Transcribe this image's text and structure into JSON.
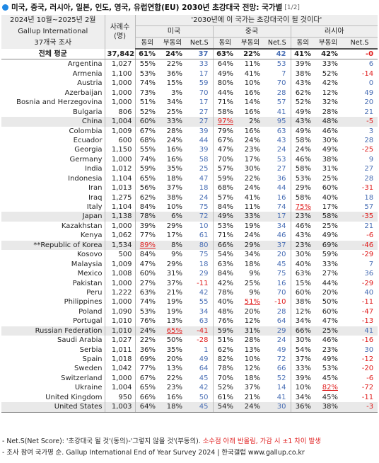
{
  "title": "미국, 중국, 러시아, 일본, 인도, 영국, 유럽연합(EU) 2030년 초강대국 전망: 국가별",
  "page": "[1/2]",
  "header": {
    "left_line1": "2024년 10월~2025년 2월",
    "left_line2": "Gallup International",
    "left_line3": "37개국 조사",
    "sample_line1": "사례수",
    "sample_line2": "(명)",
    "question": "'2030년에 이 국가는 초강대국이 될 것이다'",
    "countries": [
      "미국",
      "중국",
      "러시아"
    ],
    "sub_labels": [
      "동의",
      "부동의",
      "Net.S"
    ]
  },
  "rows": [
    {
      "name": "전체 평균",
      "n": "37,842",
      "v": [
        "61%",
        "24%",
        "37",
        "63%",
        "22%",
        "42",
        "41%",
        "42%",
        "-0"
      ],
      "neg": [
        false,
        false,
        true
      ],
      "total": true
    },
    {
      "name": "Argentina",
      "n": "1,027",
      "v": [
        "55%",
        "22%",
        "33",
        "64%",
        "11%",
        "53",
        "39%",
        "33%",
        "6"
      ],
      "neg": [
        false,
        false,
        false
      ]
    },
    {
      "name": "Armenia",
      "n": "1,100",
      "v": [
        "53%",
        "36%",
        "17",
        "49%",
        "41%",
        "7",
        "38%",
        "52%",
        "-14"
      ],
      "neg": [
        false,
        false,
        true
      ]
    },
    {
      "name": "Austria",
      "n": "1,000",
      "v": [
        "74%",
        "15%",
        "59",
        "80%",
        "10%",
        "70",
        "43%",
        "42%",
        "0"
      ],
      "neg": [
        false,
        false,
        false
      ]
    },
    {
      "name": "Azerbaijan",
      "n": "1,000",
      "v": [
        "73%",
        "3%",
        "70",
        "44%",
        "16%",
        "28",
        "62%",
        "12%",
        "49"
      ],
      "neg": [
        false,
        false,
        false
      ]
    },
    {
      "name": "Bosnia and Herzegovina",
      "n": "1,000",
      "v": [
        "51%",
        "34%",
        "17",
        "71%",
        "14%",
        "57",
        "52%",
        "32%",
        "20"
      ],
      "neg": [
        false,
        false,
        false
      ]
    },
    {
      "name": "Bulgaria",
      "n": "806",
      "v": [
        "52%",
        "25%",
        "27",
        "58%",
        "16%",
        "41",
        "49%",
        "28%",
        "21"
      ],
      "neg": [
        false,
        false,
        false
      ]
    },
    {
      "name": "China",
      "n": "1,004",
      "v": [
        "60%",
        "33%",
        "27",
        "97%",
        "2%",
        "95",
        "43%",
        "48%",
        "-5"
      ],
      "neg": [
        false,
        false,
        true
      ],
      "shade": true,
      "hl": [
        3
      ]
    },
    {
      "name": "Colombia",
      "n": "1,009",
      "v": [
        "67%",
        "28%",
        "39",
        "79%",
        "16%",
        "63",
        "49%",
        "46%",
        "3"
      ],
      "neg": [
        false,
        false,
        false
      ]
    },
    {
      "name": "Ecuador",
      "n": "600",
      "v": [
        "68%",
        "24%",
        "44",
        "67%",
        "24%",
        "43",
        "58%",
        "30%",
        "28"
      ],
      "neg": [
        false,
        false,
        false
      ]
    },
    {
      "name": "Georgia",
      "n": "1,150",
      "v": [
        "55%",
        "16%",
        "39",
        "47%",
        "23%",
        "24",
        "24%",
        "49%",
        "-25"
      ],
      "neg": [
        false,
        false,
        true
      ]
    },
    {
      "name": "Germany",
      "n": "1,000",
      "v": [
        "74%",
        "16%",
        "58",
        "70%",
        "17%",
        "53",
        "46%",
        "38%",
        "9"
      ],
      "neg": [
        false,
        false,
        false
      ]
    },
    {
      "name": "India",
      "n": "1,012",
      "v": [
        "59%",
        "35%",
        "25",
        "57%",
        "30%",
        "27",
        "58%",
        "31%",
        "27"
      ],
      "neg": [
        false,
        false,
        false
      ]
    },
    {
      "name": "Indonesia",
      "n": "1,104",
      "v": [
        "65%",
        "18%",
        "47",
        "59%",
        "22%",
        "36",
        "53%",
        "25%",
        "28"
      ],
      "neg": [
        false,
        false,
        false
      ]
    },
    {
      "name": "Iran",
      "n": "1,013",
      "v": [
        "56%",
        "37%",
        "18",
        "68%",
        "24%",
        "44",
        "29%",
        "60%",
        "-31"
      ],
      "neg": [
        false,
        false,
        true
      ]
    },
    {
      "name": "Iraq",
      "n": "1,275",
      "v": [
        "62%",
        "38%",
        "24",
        "57%",
        "41%",
        "16",
        "58%",
        "40%",
        "18"
      ],
      "neg": [
        false,
        false,
        false
      ]
    },
    {
      "name": "Italy",
      "n": "1,104",
      "v": [
        "84%",
        "10%",
        "75",
        "84%",
        "11%",
        "74",
        "75%",
        "17%",
        "57"
      ],
      "neg": [
        false,
        false,
        false
      ],
      "hl": [
        6
      ]
    },
    {
      "name": "Japan",
      "n": "1,138",
      "v": [
        "78%",
        "6%",
        "72",
        "49%",
        "33%",
        "17",
        "23%",
        "58%",
        "-35"
      ],
      "neg": [
        false,
        false,
        true
      ],
      "shade": true
    },
    {
      "name": "Kazakhstan",
      "n": "1,000",
      "v": [
        "39%",
        "29%",
        "10",
        "53%",
        "19%",
        "34",
        "46%",
        "25%",
        "21"
      ],
      "neg": [
        false,
        false,
        false
      ]
    },
    {
      "name": "Kenya",
      "n": "1,062",
      "v": [
        "77%",
        "17%",
        "61",
        "71%",
        "24%",
        "46",
        "43%",
        "49%",
        "-6"
      ],
      "neg": [
        false,
        false,
        true
      ]
    },
    {
      "name": "**Republic of Korea",
      "n": "1,534",
      "v": [
        "89%",
        "8%",
        "80",
        "66%",
        "29%",
        "37",
        "23%",
        "69%",
        "-46"
      ],
      "neg": [
        false,
        false,
        true
      ],
      "shade": true,
      "hl": [
        0
      ]
    },
    {
      "name": "Kosovo",
      "n": "500",
      "v": [
        "84%",
        "9%",
        "75",
        "54%",
        "34%",
        "20",
        "30%",
        "59%",
        "-29"
      ],
      "neg": [
        false,
        false,
        true
      ]
    },
    {
      "name": "Malaysia",
      "n": "1,009",
      "v": [
        "47%",
        "29%",
        "18",
        "63%",
        "18%",
        "45",
        "40%",
        "33%",
        "7"
      ],
      "neg": [
        false,
        false,
        false
      ]
    },
    {
      "name": "Mexico",
      "n": "1,008",
      "v": [
        "60%",
        "31%",
        "29",
        "84%",
        "9%",
        "75",
        "63%",
        "27%",
        "36"
      ],
      "neg": [
        false,
        false,
        false
      ]
    },
    {
      "name": "Pakistan",
      "n": "1,000",
      "v": [
        "27%",
        "37%",
        "-11",
        "42%",
        "25%",
        "16",
        "15%",
        "44%",
        "-29"
      ],
      "neg": [
        true,
        false,
        true
      ]
    },
    {
      "name": "Peru",
      "n": "1,222",
      "v": [
        "63%",
        "21%",
        "42",
        "78%",
        "9%",
        "70",
        "60%",
        "20%",
        "40"
      ],
      "neg": [
        false,
        false,
        false
      ]
    },
    {
      "name": "Philippines",
      "n": "1,000",
      "v": [
        "74%",
        "19%",
        "55",
        "40%",
        "51%",
        "-10",
        "38%",
        "50%",
        "-11"
      ],
      "neg": [
        false,
        true,
        true
      ],
      "hl": [
        4
      ]
    },
    {
      "name": "Poland",
      "n": "1,090",
      "v": [
        "53%",
        "19%",
        "34",
        "48%",
        "20%",
        "28",
        "12%",
        "60%",
        "-47"
      ],
      "neg": [
        false,
        false,
        true
      ]
    },
    {
      "name": "Portugal",
      "n": "1,010",
      "v": [
        "76%",
        "13%",
        "63",
        "76%",
        "12%",
        "64",
        "34%",
        "47%",
        "-13"
      ],
      "neg": [
        false,
        false,
        true
      ]
    },
    {
      "name": "Russian Federation",
      "n": "1,010",
      "v": [
        "24%",
        "65%",
        "-41",
        "59%",
        "31%",
        "29",
        "66%",
        "25%",
        "41"
      ],
      "neg": [
        true,
        false,
        false
      ],
      "shade": true,
      "hl": [
        1
      ]
    },
    {
      "name": "Saudi Arabia",
      "n": "1,027",
      "v": [
        "22%",
        "50%",
        "-28",
        "51%",
        "28%",
        "24",
        "30%",
        "46%",
        "-16"
      ],
      "neg": [
        true,
        false,
        true
      ]
    },
    {
      "name": "Serbia",
      "n": "1,011",
      "v": [
        "36%",
        "35%",
        "1",
        "62%",
        "13%",
        "49",
        "54%",
        "23%",
        "30"
      ],
      "neg": [
        false,
        false,
        false
      ]
    },
    {
      "name": "Spain",
      "n": "1,018",
      "v": [
        "69%",
        "20%",
        "49",
        "82%",
        "10%",
        "72",
        "37%",
        "49%",
        "-12"
      ],
      "neg": [
        false,
        false,
        true
      ]
    },
    {
      "name": "Sweden",
      "n": "1,042",
      "v": [
        "77%",
        "13%",
        "64",
        "78%",
        "12%",
        "66",
        "33%",
        "53%",
        "-20"
      ],
      "neg": [
        false,
        false,
        true
      ]
    },
    {
      "name": "Switzerland",
      "n": "1,000",
      "v": [
        "67%",
        "22%",
        "45",
        "70%",
        "18%",
        "52",
        "39%",
        "45%",
        "-6"
      ],
      "neg": [
        false,
        false,
        true
      ]
    },
    {
      "name": "Ukraine",
      "n": "1,004",
      "v": [
        "65%",
        "23%",
        "42",
        "52%",
        "37%",
        "14",
        "10%",
        "82%",
        "-72"
      ],
      "neg": [
        false,
        false,
        true
      ],
      "hl": [
        7
      ]
    },
    {
      "name": "United Kingdom",
      "n": "950",
      "v": [
        "66%",
        "16%",
        "50",
        "61%",
        "21%",
        "41",
        "34%",
        "45%",
        "-11"
      ],
      "neg": [
        false,
        false,
        true
      ]
    },
    {
      "name": "United States",
      "n": "1,003",
      "v": [
        "64%",
        "18%",
        "45",
        "54%",
        "24%",
        "30",
        "36%",
        "38%",
        "-3"
      ],
      "neg": [
        false,
        false,
        true
      ],
      "shade": true
    }
  ],
  "notes": {
    "line1_black": "- Net.S(Net Score): '초강대국 될 것'(동의)-'그렇지 않을 것'(부동의). ",
    "line1_red": "소수점 아래 반올림, 가감 시 ±1 차이 발생",
    "line2": "- 조사 참여 국가명 순. Gallup International End of Year Survey 2024 | 한국갤럽 www.gallup.co.kr"
  },
  "colors": {
    "accent": "#1e88e5",
    "negative": "#e02020",
    "positive_net": "#4a6fb5",
    "shade": "#e9e9e9",
    "header_bg": "#eeeeee"
  }
}
